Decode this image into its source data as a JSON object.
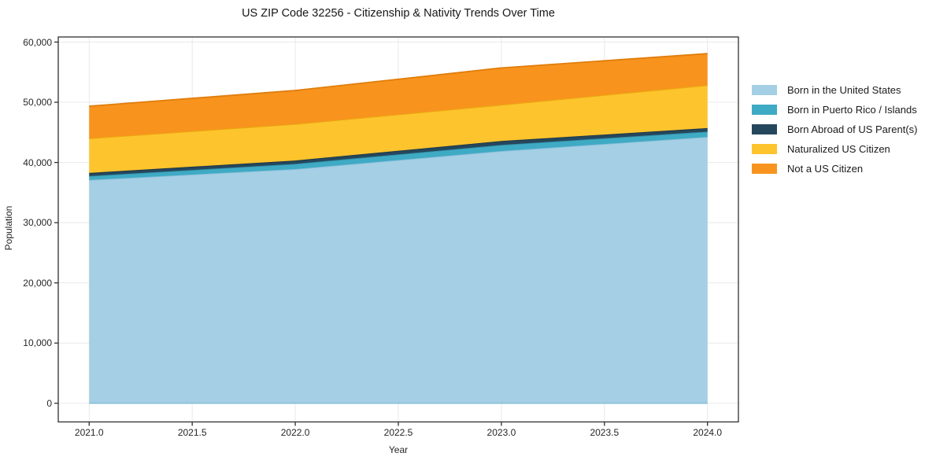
{
  "title": "US ZIP Code 32256 - Citizenship & Nativity Trends Over Time",
  "chart_data": {
    "type": "area",
    "stacked": true,
    "title": "US ZIP Code 32256 - Citizenship & Nativity Trends Over Time",
    "xlabel": "Year",
    "ylabel": "Population",
    "x": [
      2021,
      2022,
      2023,
      2024
    ],
    "series": [
      {
        "name": "Born in the United States",
        "color": "#a4cfe4",
        "line_color": "#85bcd9",
        "values": [
          37100,
          38900,
          41900,
          44250
        ]
      },
      {
        "name": "Born in Puerto Rico / Islands",
        "color": "#3faac4",
        "line_color": "#318ea6",
        "values": [
          650,
          870,
          1020,
          880
        ]
      },
      {
        "name": "Born Abroad of US Parent(s)",
        "color": "#25475c",
        "line_color": "#1a3549",
        "values": [
          520,
          560,
          650,
          580
        ]
      },
      {
        "name": "Naturalized US Citizen",
        "color": "#fdc42d",
        "line_color": "#e9a90e",
        "values": [
          5730,
          6050,
          6000,
          7120
        ]
      },
      {
        "name": "Not a US Citizen",
        "color": "#f8941e",
        "line_color": "#e07d0a",
        "values": [
          5350,
          5580,
          6140,
          5250
        ]
      }
    ],
    "stack_totals": [
      49350,
      51960,
      55710,
      58080
    ],
    "xlim": [
      2020.85,
      2024.15
    ],
    "ylim": [
      -3100,
      60850
    ],
    "xticks": {
      "values": [
        2021.0,
        2021.5,
        2022.0,
        2022.5,
        2023.0,
        2023.5,
        2024.0
      ],
      "labels": [
        "2021.0",
        "2021.5",
        "2022.0",
        "2022.5",
        "2023.0",
        "2023.5",
        "2024.0"
      ]
    },
    "yticks": {
      "values": [
        0,
        10000,
        20000,
        30000,
        40000,
        50000,
        60000
      ],
      "labels": [
        "0",
        "10,000",
        "20,000",
        "30,000",
        "40,000",
        "50,000",
        "60,000"
      ]
    },
    "grid": true,
    "legend_position": "right-outside"
  },
  "style_colors": {
    "grid": "#e9e9e9",
    "spine": "#2f2f2f",
    "tick": "#2f2f2f",
    "background": "#ffffff"
  }
}
